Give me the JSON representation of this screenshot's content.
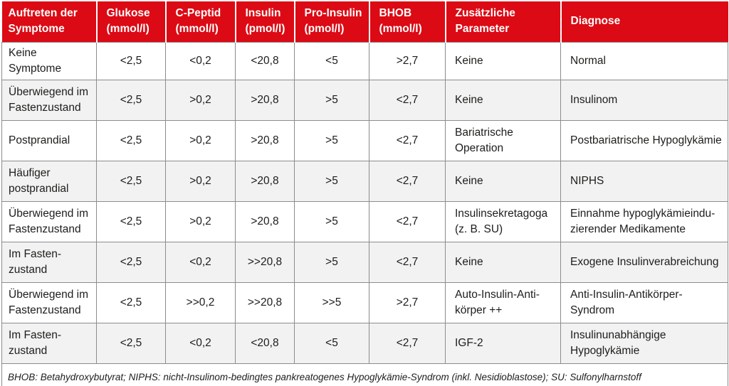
{
  "colors": {
    "header_bg": "#dc0a14",
    "header_text": "#ffffff",
    "row_alt_bg": "#f2f2f2",
    "border": "#8c8c8c",
    "body_text": "#1d1d1b"
  },
  "table": {
    "columns": [
      {
        "id": "symptome",
        "label": "Auftreten der\nSymptome",
        "align": "left"
      },
      {
        "id": "glukose",
        "label": "Glukose\n(mmol/l)",
        "align": "center"
      },
      {
        "id": "cpeptid",
        "label": "C-Peptid\n(mmol/l)",
        "align": "center"
      },
      {
        "id": "insulin",
        "label": "Insulin\n(pmol/l)",
        "align": "center"
      },
      {
        "id": "proinsulin",
        "label": "Pro-Insulin\n(pmol/l)",
        "align": "center"
      },
      {
        "id": "bhob",
        "label": "BHOB\n(mmol/l)",
        "align": "center"
      },
      {
        "id": "zusatz",
        "label": "Zusätzliche\nParameter",
        "align": "left"
      },
      {
        "id": "diagnose",
        "label": "Diagnose",
        "align": "left"
      }
    ],
    "rows": [
      {
        "cells": [
          "Keine Symptome",
          "<2,5",
          "<0,2",
          "<20,8",
          "<5",
          ">2,7",
          "Keine",
          "Normal"
        ]
      },
      {
        "cells": [
          "Überwiegend im\nFastenzustand",
          "<2,5",
          ">0,2",
          ">20,8",
          ">5",
          "<2,7",
          "Keine",
          "Insulinom"
        ]
      },
      {
        "cells": [
          "Postprandial",
          "<2,5",
          ">0,2",
          ">20,8",
          ">5",
          "<2,7",
          "Bariatrische\nOperation",
          "Postbariatrische Hypoglykämie"
        ]
      },
      {
        "cells": [
          "Häufiger\npostprandial",
          "<2,5",
          ">0,2",
          ">20,8",
          ">5",
          "<2,7",
          "Keine",
          "NIPHS"
        ]
      },
      {
        "cells": [
          "Überwiegend im\nFastenzustand",
          "<2,5",
          ">0,2",
          ">20,8",
          ">5",
          "<2,7",
          "Insulinsekretagoga\n(z. B. SU)",
          "Einnahme hypoglykämieindu-\nzierender Medikamente"
        ]
      },
      {
        "cells": [
          "Im Fasten-\nzustand",
          "<2,5",
          "<0,2",
          ">>20,8",
          ">5",
          "<2,7",
          "Keine",
          "Exogene Insulinverabreichung"
        ]
      },
      {
        "cells": [
          "Überwiegend im\nFastenzustand",
          "<2,5",
          ">>0,2",
          ">>20,8",
          ">>5",
          ">2,7",
          "Auto-Insulin-Anti-\nkörper ++",
          "Anti-Insulin-Antikörper-Syndrom"
        ]
      },
      {
        "cells": [
          "Im Fasten-\nzustand",
          "<2,5",
          "<0,2",
          "<20,8",
          "<5",
          "<2,7",
          "IGF-2",
          "Insulinunabhängige\nHypoglykämie"
        ]
      }
    ]
  },
  "footnote": "BHOB: Betahydroxybutyrat; NIPHS: nicht-Insulinom-bedingtes pankreatogenes Hypoglykämie-Syndrom (inkl. Nesidioblastose); SU: Sulfonylharnstoff"
}
